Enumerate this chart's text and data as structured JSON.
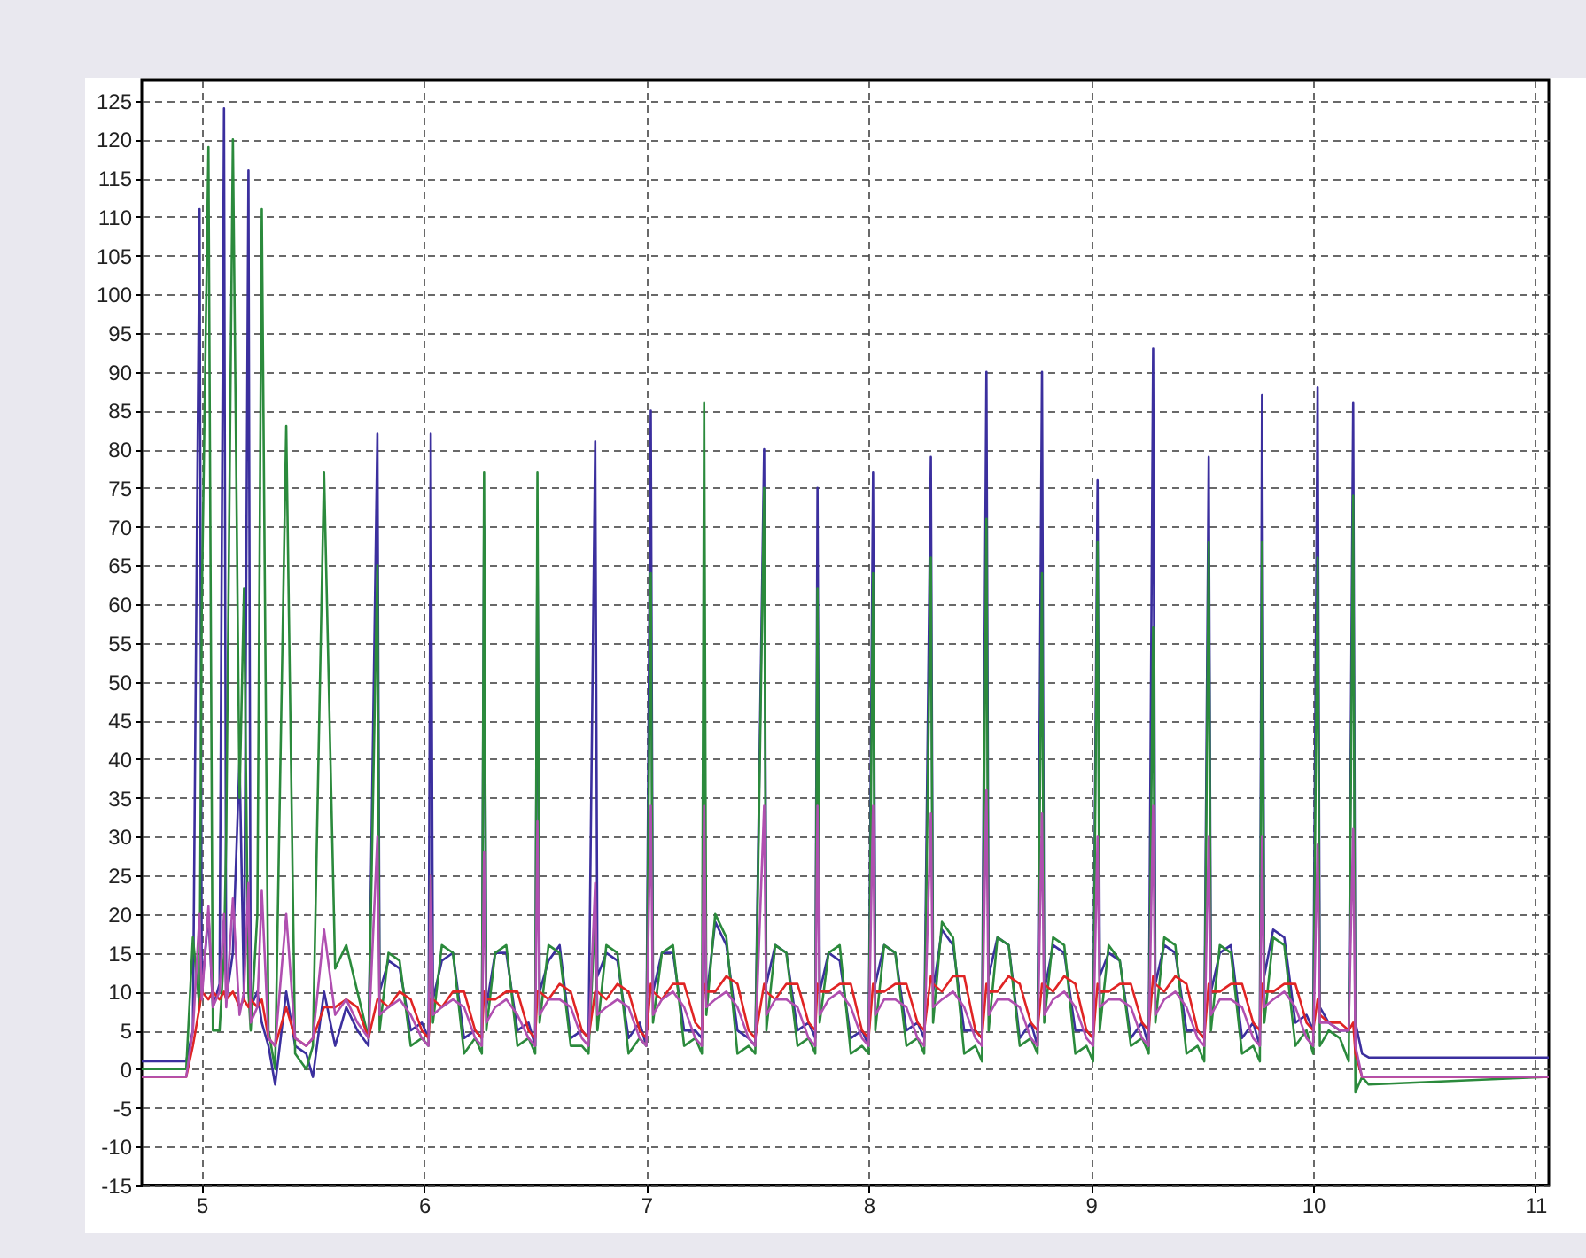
{
  "chart_data": {
    "type": "line",
    "grid": true,
    "xlim": [
      4.73,
      11.06
    ],
    "xticks": [
      5,
      6,
      7,
      8,
      9,
      10,
      11
    ],
    "ylim": [
      -15,
      127.7
    ],
    "yticks": [
      -15,
      -10,
      -5,
      0,
      5,
      10,
      15,
      20,
      25,
      30,
      35,
      40,
      45,
      50,
      55,
      60,
      65,
      70,
      75,
      80,
      85,
      90,
      95,
      100,
      105,
      110,
      115,
      120,
      125
    ],
    "x": [
      4.73,
      4.93,
      4.96,
      4.99,
      5.0,
      5.03,
      5.05,
      5.08,
      5.1,
      5.11,
      5.14,
      5.17,
      5.19,
      5.21,
      5.22,
      5.25,
      5.27,
      5.3,
      5.33,
      5.38,
      5.42,
      5.47,
      5.5,
      5.55,
      5.6,
      5.65,
      5.7,
      5.75,
      5.79,
      5.8,
      5.84,
      5.89,
      5.94,
      5.99,
      6.02,
      6.03,
      6.04,
      6.08,
      6.13,
      6.18,
      6.23,
      6.26,
      6.27,
      6.28,
      6.32,
      6.37,
      6.42,
      6.47,
      6.5,
      6.51,
      6.52,
      6.56,
      6.61,
      6.66,
      6.71,
      6.74,
      6.77,
      6.78,
      6.82,
      6.87,
      6.92,
      6.97,
      7.0,
      7.02,
      7.03,
      7.07,
      7.12,
      7.17,
      7.22,
      7.25,
      7.26,
      7.27,
      7.31,
      7.36,
      7.41,
      7.46,
      7.49,
      7.53,
      7.54,
      7.58,
      7.63,
      7.68,
      7.73,
      7.76,
      7.77,
      7.78,
      7.82,
      7.87,
      7.92,
      7.97,
      8.0,
      8.02,
      8.03,
      8.07,
      8.12,
      8.17,
      8.22,
      8.25,
      8.28,
      8.29,
      8.33,
      8.38,
      8.43,
      8.48,
      8.51,
      8.53,
      8.54,
      8.58,
      8.63,
      8.68,
      8.73,
      8.76,
      8.78,
      8.79,
      8.83,
      8.88,
      8.93,
      8.98,
      9.01,
      9.03,
      9.04,
      9.08,
      9.13,
      9.18,
      9.23,
      9.26,
      9.28,
      9.29,
      9.33,
      9.38,
      9.43,
      9.48,
      9.51,
      9.53,
      9.54,
      9.58,
      9.63,
      9.68,
      9.73,
      9.76,
      9.77,
      9.78,
      9.82,
      9.87,
      9.92,
      9.97,
      10.0,
      10.02,
      10.03,
      10.07,
      10.12,
      10.16,
      10.18,
      10.19,
      10.22,
      10.25,
      11.06
    ],
    "series": [
      {
        "color": "#3b2f9e",
        "values": [
          1,
          1,
          5,
          111,
          10,
          20,
          8,
          11,
          124,
          9,
          15,
          40,
          9,
          116,
          8,
          10,
          6,
          3,
          -2,
          10,
          3,
          2,
          -1,
          10,
          3,
          8,
          5,
          3,
          82,
          10,
          14,
          13,
          5,
          6,
          4,
          82,
          9,
          14,
          15,
          4,
          5,
          4,
          70,
          8,
          15,
          15,
          5,
          6,
          3,
          69,
          10,
          14,
          16,
          4,
          5,
          4,
          81,
          12,
          15,
          14,
          4,
          6,
          3,
          85,
          10,
          15,
          15,
          5,
          5,
          4,
          28,
          9,
          19,
          16,
          5,
          4,
          3,
          80,
          11,
          16,
          15,
          5,
          6,
          4,
          75,
          10,
          15,
          14,
          4,
          5,
          3,
          77,
          11,
          16,
          15,
          5,
          6,
          4,
          79,
          10,
          18,
          16,
          5,
          5,
          4,
          90,
          12,
          17,
          16,
          4,
          6,
          3,
          90,
          10,
          16,
          15,
          5,
          5,
          4,
          76,
          12,
          15,
          14,
          4,
          6,
          3,
          93,
          11,
          16,
          15,
          5,
          5,
          4,
          79,
          10,
          15,
          16,
          4,
          6,
          3,
          87,
          12,
          18,
          17,
          6,
          7,
          5,
          88,
          8,
          6,
          5,
          5,
          86,
          6,
          2,
          1.5,
          1.5
        ]
      },
      {
        "color": "#2b8a3c",
        "values": [
          0,
          0,
          17,
          8,
          60,
          119,
          5,
          5,
          15,
          30,
          120,
          35,
          62,
          10,
          5,
          20,
          111,
          5,
          0,
          83,
          2,
          0,
          3,
          77,
          13,
          16,
          10,
          4,
          65,
          5,
          15,
          14,
          3,
          4,
          3,
          25,
          6,
          16,
          15,
          2,
          4,
          2,
          77,
          5,
          15,
          16,
          3,
          4,
          2,
          77,
          6,
          16,
          15,
          3,
          3,
          2,
          20,
          5,
          16,
          15,
          2,
          4,
          3,
          64,
          6,
          15,
          16,
          3,
          4,
          2,
          86,
          7,
          20,
          17,
          2,
          3,
          2,
          75,
          5,
          16,
          15,
          3,
          4,
          2,
          62,
          6,
          15,
          16,
          2,
          3,
          2,
          64,
          5,
          16,
          15,
          3,
          4,
          2,
          66,
          6,
          19,
          17,
          2,
          3,
          1,
          71,
          5,
          17,
          16,
          3,
          4,
          2,
          64,
          6,
          17,
          16,
          2,
          3,
          1,
          68,
          5,
          16,
          14,
          3,
          4,
          2,
          57,
          6,
          17,
          16,
          2,
          3,
          1,
          68,
          5,
          16,
          15,
          2,
          3,
          1,
          68,
          6,
          17,
          16,
          3,
          5,
          2,
          66,
          3,
          5,
          4,
          1,
          74,
          -3,
          -1,
          -2,
          -1
        ]
      },
      {
        "color": "#e02424",
        "values": [
          -1,
          -1,
          3,
          8,
          10,
          9,
          10,
          9,
          10,
          9,
          10,
          8,
          9,
          8,
          9,
          8,
          9,
          4,
          3,
          8,
          4,
          3,
          4,
          8,
          8,
          9,
          8,
          4,
          9,
          9,
          8,
          10,
          9,
          5,
          4,
          9,
          9,
          8,
          10,
          10,
          5,
          4,
          10,
          9,
          9,
          10,
          10,
          5,
          4,
          10,
          10,
          9,
          11,
          10,
          5,
          4,
          10,
          10,
          9,
          11,
          10,
          5,
          4,
          11,
          10,
          9,
          11,
          11,
          6,
          5,
          11,
          10,
          10,
          12,
          11,
          5,
          4,
          11,
          10,
          9,
          11,
          11,
          6,
          5,
          11,
          10,
          10,
          11,
          11,
          5,
          4,
          11,
          10,
          10,
          11,
          11,
          6,
          5,
          12,
          11,
          10,
          12,
          12,
          5,
          4,
          11,
          10,
          10,
          12,
          11,
          6,
          5,
          11,
          11,
          10,
          12,
          11,
          5,
          4,
          11,
          10,
          10,
          11,
          11,
          6,
          5,
          12,
          11,
          10,
          12,
          11,
          5,
          4,
          11,
          10,
          10,
          11,
          11,
          6,
          5,
          11,
          10,
          10,
          11,
          11,
          6,
          5,
          9,
          7,
          6,
          6,
          5,
          6,
          2,
          -1,
          -1,
          -1
        ]
      },
      {
        "color": "#b04fb0",
        "values": [
          -1,
          -1,
          5,
          20,
          9,
          21,
          8,
          10,
          20,
          8,
          22,
          7,
          10,
          24,
          6,
          8,
          23,
          4,
          3,
          20,
          4,
          3,
          4,
          18,
          7,
          9,
          6,
          4,
          30,
          7,
          8,
          9,
          7,
          4,
          3,
          25,
          7,
          8,
          9,
          8,
          4,
          3,
          28,
          6,
          8,
          9,
          7,
          4,
          3,
          32,
          7,
          9,
          9,
          8,
          4,
          3,
          24,
          7,
          8,
          9,
          8,
          4,
          3,
          34,
          7,
          9,
          10,
          8,
          4,
          3,
          34,
          8,
          9,
          10,
          8,
          4,
          3,
          34,
          7,
          9,
          9,
          8,
          4,
          3,
          34,
          7,
          9,
          10,
          8,
          4,
          3,
          34,
          7,
          9,
          9,
          8,
          4,
          3,
          33,
          8,
          9,
          10,
          8,
          4,
          3,
          36,
          7,
          9,
          9,
          8,
          4,
          3,
          33,
          7,
          9,
          10,
          8,
          4,
          3,
          30,
          8,
          9,
          9,
          8,
          4,
          3,
          34,
          7,
          9,
          10,
          8,
          4,
          3,
          30,
          7,
          9,
          9,
          8,
          4,
          3,
          30,
          8,
          9,
          10,
          8,
          4,
          3,
          29,
          6,
          6,
          5,
          5,
          31,
          3,
          -1,
          -1,
          -1
        ]
      }
    ]
  }
}
